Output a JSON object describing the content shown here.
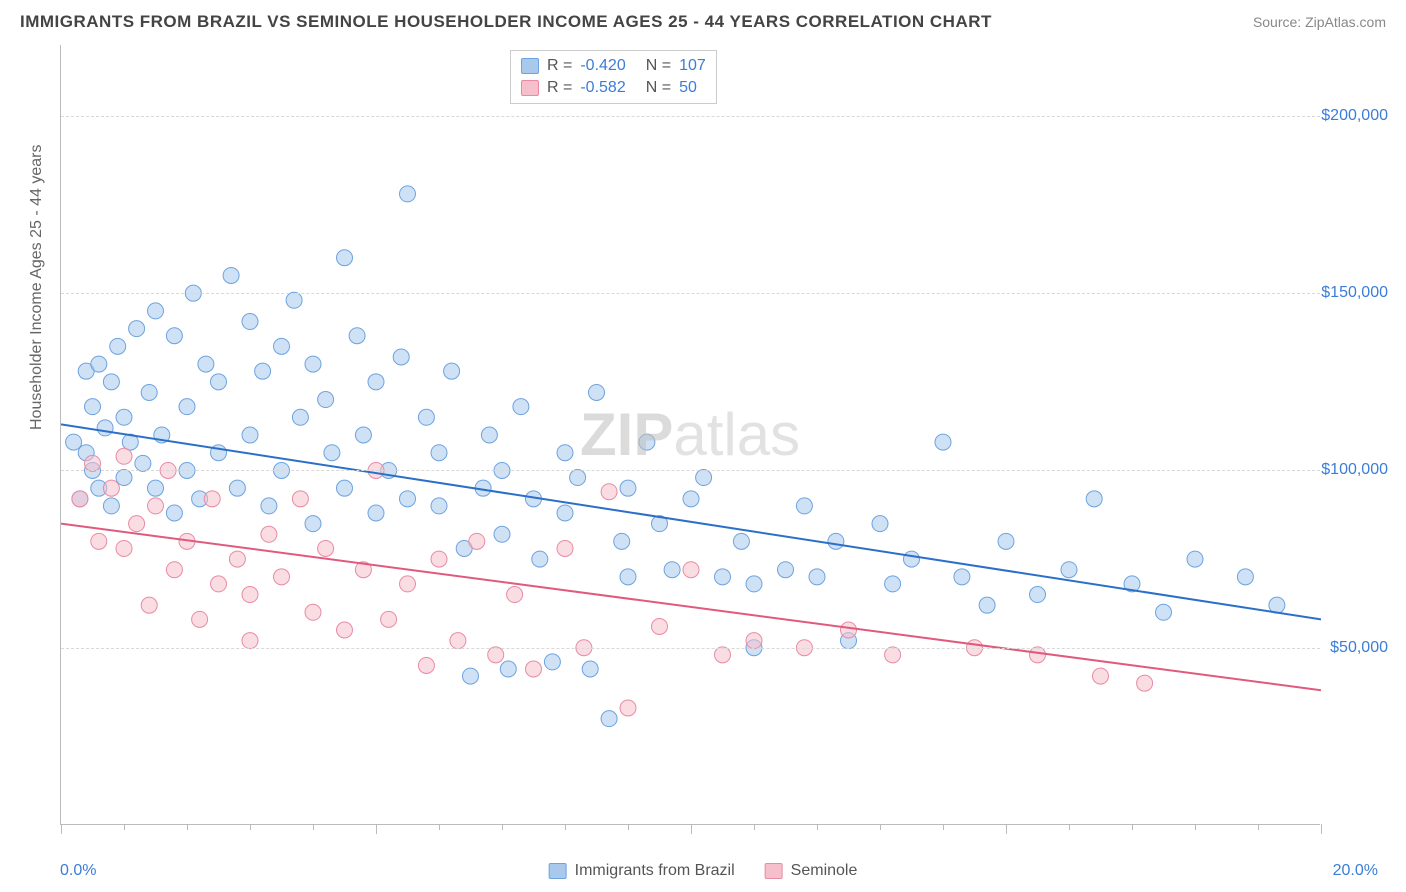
{
  "title": "IMMIGRANTS FROM BRAZIL VS SEMINOLE HOUSEHOLDER INCOME AGES 25 - 44 YEARS CORRELATION CHART",
  "source": "Source: ZipAtlas.com",
  "watermark_bold": "ZIP",
  "watermark_light": "atlas",
  "ylabel": "Householder Income Ages 25 - 44 years",
  "chart": {
    "type": "scatter",
    "xlim": [
      0,
      20
    ],
    "ylim": [
      0,
      220000
    ],
    "xtick_major": [
      0,
      5,
      10,
      15,
      20
    ],
    "xtick_minor": [
      1,
      2,
      3,
      4,
      6,
      7,
      8,
      9,
      11,
      12,
      13,
      14,
      16,
      17,
      18,
      19
    ],
    "ytick_values": [
      50000,
      100000,
      150000,
      200000
    ],
    "ytick_labels": [
      "$50,000",
      "$100,000",
      "$150,000",
      "$200,000"
    ],
    "x_left_label": "0.0%",
    "x_right_label": "20.0%",
    "background_color": "#ffffff",
    "grid_color": "#d8d8d8",
    "axis_color": "#bbbbbb",
    "tick_label_color": "#3b7dd8",
    "series": [
      {
        "name": "Immigrants from Brazil",
        "color_fill": "#a8c8ec",
        "color_stroke": "#6da3e0",
        "fill_opacity": 0.55,
        "marker_radius": 8,
        "R": "-0.420",
        "N": "107",
        "trend": {
          "x1": 0,
          "y1": 113000,
          "x2": 20,
          "y2": 58000,
          "color": "#2b6fc9",
          "width": 2
        },
        "points": [
          [
            0.2,
            108000
          ],
          [
            0.3,
            92000
          ],
          [
            0.4,
            128000
          ],
          [
            0.4,
            105000
          ],
          [
            0.5,
            118000
          ],
          [
            0.5,
            100000
          ],
          [
            0.6,
            130000
          ],
          [
            0.6,
            95000
          ],
          [
            0.7,
            112000
          ],
          [
            0.8,
            125000
          ],
          [
            0.8,
            90000
          ],
          [
            0.9,
            135000
          ],
          [
            1.0,
            115000
          ],
          [
            1.0,
            98000
          ],
          [
            1.1,
            108000
          ],
          [
            1.2,
            140000
          ],
          [
            1.3,
            102000
          ],
          [
            1.4,
            122000
          ],
          [
            1.5,
            145000
          ],
          [
            1.5,
            95000
          ],
          [
            1.6,
            110000
          ],
          [
            1.8,
            138000
          ],
          [
            1.8,
            88000
          ],
          [
            2.0,
            118000
          ],
          [
            2.0,
            100000
          ],
          [
            2.1,
            150000
          ],
          [
            2.2,
            92000
          ],
          [
            2.3,
            130000
          ],
          [
            2.5,
            105000
          ],
          [
            2.5,
            125000
          ],
          [
            2.7,
            155000
          ],
          [
            2.8,
            95000
          ],
          [
            3.0,
            142000
          ],
          [
            3.0,
            110000
          ],
          [
            3.2,
            128000
          ],
          [
            3.3,
            90000
          ],
          [
            3.5,
            135000
          ],
          [
            3.5,
            100000
          ],
          [
            3.7,
            148000
          ],
          [
            3.8,
            115000
          ],
          [
            4.0,
            130000
          ],
          [
            4.0,
            85000
          ],
          [
            4.2,
            120000
          ],
          [
            4.3,
            105000
          ],
          [
            4.5,
            160000
          ],
          [
            4.5,
            95000
          ],
          [
            4.7,
            138000
          ],
          [
            4.8,
            110000
          ],
          [
            5.0,
            125000
          ],
          [
            5.0,
            88000
          ],
          [
            5.2,
            100000
          ],
          [
            5.4,
            132000
          ],
          [
            5.5,
            92000
          ],
          [
            5.5,
            178000
          ],
          [
            5.8,
            115000
          ],
          [
            6.0,
            105000
          ],
          [
            6.0,
            90000
          ],
          [
            6.2,
            128000
          ],
          [
            6.4,
            78000
          ],
          [
            6.5,
            42000
          ],
          [
            6.7,
            95000
          ],
          [
            6.8,
            110000
          ],
          [
            7.0,
            100000
          ],
          [
            7.0,
            82000
          ],
          [
            7.1,
            44000
          ],
          [
            7.3,
            118000
          ],
          [
            7.5,
            92000
          ],
          [
            7.6,
            75000
          ],
          [
            7.8,
            46000
          ],
          [
            8.0,
            105000
          ],
          [
            8.0,
            88000
          ],
          [
            8.2,
            98000
          ],
          [
            8.4,
            44000
          ],
          [
            8.5,
            122000
          ],
          [
            8.7,
            30000
          ],
          [
            8.9,
            80000
          ],
          [
            9.0,
            95000
          ],
          [
            9.0,
            70000
          ],
          [
            9.3,
            108000
          ],
          [
            9.5,
            85000
          ],
          [
            9.7,
            72000
          ],
          [
            10.0,
            92000
          ],
          [
            10.2,
            98000
          ],
          [
            10.5,
            70000
          ],
          [
            10.8,
            80000
          ],
          [
            11.0,
            68000
          ],
          [
            11.0,
            50000
          ],
          [
            11.5,
            72000
          ],
          [
            11.8,
            90000
          ],
          [
            12.0,
            70000
          ],
          [
            12.3,
            80000
          ],
          [
            12.5,
            52000
          ],
          [
            13.0,
            85000
          ],
          [
            13.2,
            68000
          ],
          [
            13.5,
            75000
          ],
          [
            14.0,
            108000
          ],
          [
            14.3,
            70000
          ],
          [
            14.7,
            62000
          ],
          [
            15.0,
            80000
          ],
          [
            15.5,
            65000
          ],
          [
            16.0,
            72000
          ],
          [
            16.4,
            92000
          ],
          [
            17.0,
            68000
          ],
          [
            17.5,
            60000
          ],
          [
            18.0,
            75000
          ],
          [
            18.8,
            70000
          ],
          [
            19.3,
            62000
          ]
        ]
      },
      {
        "name": "Seminole",
        "color_fill": "#f5c0cc",
        "color_stroke": "#e88ba3",
        "fill_opacity": 0.55,
        "marker_radius": 8,
        "R": "-0.582",
        "N": "50",
        "trend": {
          "x1": 0,
          "y1": 85000,
          "x2": 20,
          "y2": 38000,
          "color": "#e05a7d",
          "width": 2
        },
        "points": [
          [
            0.3,
            92000
          ],
          [
            0.5,
            102000
          ],
          [
            0.6,
            80000
          ],
          [
            0.8,
            95000
          ],
          [
            1.0,
            78000
          ],
          [
            1.0,
            104000
          ],
          [
            1.2,
            85000
          ],
          [
            1.4,
            62000
          ],
          [
            1.5,
            90000
          ],
          [
            1.7,
            100000
          ],
          [
            1.8,
            72000
          ],
          [
            2.0,
            80000
          ],
          [
            2.2,
            58000
          ],
          [
            2.4,
            92000
          ],
          [
            2.5,
            68000
          ],
          [
            2.8,
            75000
          ],
          [
            3.0,
            65000
          ],
          [
            3.0,
            52000
          ],
          [
            3.3,
            82000
          ],
          [
            3.5,
            70000
          ],
          [
            3.8,
            92000
          ],
          [
            4.0,
            60000
          ],
          [
            4.2,
            78000
          ],
          [
            4.5,
            55000
          ],
          [
            4.8,
            72000
          ],
          [
            5.0,
            100000
          ],
          [
            5.2,
            58000
          ],
          [
            5.5,
            68000
          ],
          [
            5.8,
            45000
          ],
          [
            6.0,
            75000
          ],
          [
            6.3,
            52000
          ],
          [
            6.6,
            80000
          ],
          [
            6.9,
            48000
          ],
          [
            7.2,
            65000
          ],
          [
            7.5,
            44000
          ],
          [
            8.0,
            78000
          ],
          [
            8.3,
            50000
          ],
          [
            8.7,
            94000
          ],
          [
            9.0,
            33000
          ],
          [
            9.5,
            56000
          ],
          [
            10.0,
            72000
          ],
          [
            10.5,
            48000
          ],
          [
            11.0,
            52000
          ],
          [
            11.8,
            50000
          ],
          [
            12.5,
            55000
          ],
          [
            13.2,
            48000
          ],
          [
            14.5,
            50000
          ],
          [
            15.5,
            48000
          ],
          [
            16.5,
            42000
          ],
          [
            17.2,
            40000
          ]
        ]
      }
    ]
  }
}
